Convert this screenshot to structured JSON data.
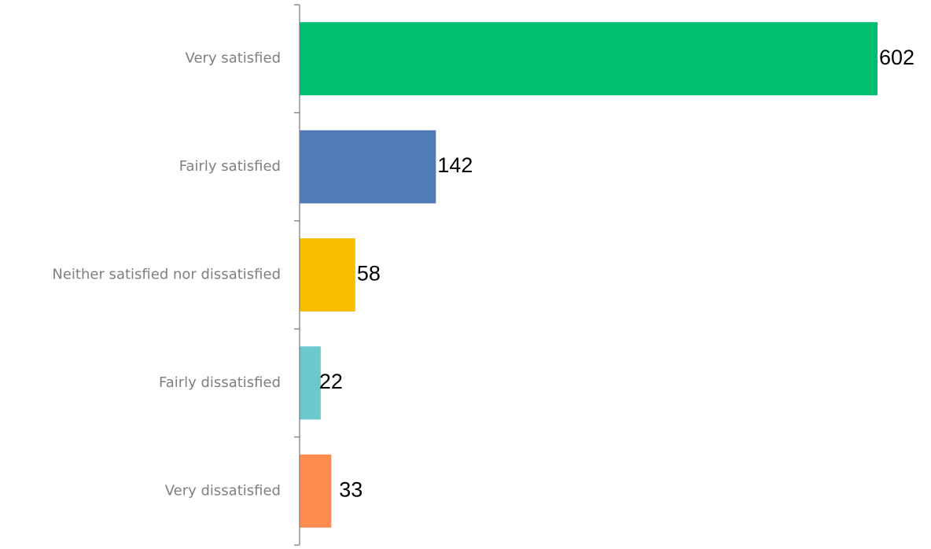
{
  "chart_data": {
    "type": "bar",
    "orientation": "horizontal",
    "categories": [
      "Very satisfied",
      "Fairly satisfied",
      "Neither satisfied nor dissatisfied",
      "Fairly dissatisfied",
      "Very dissatisfied"
    ],
    "values": [
      602,
      142,
      58,
      22,
      33
    ],
    "colors": [
      "#00bf6f",
      "#507cb6",
      "#f9be00",
      "#6bc8cd",
      "#ff8b4f"
    ],
    "data_labels": [
      "602",
      "142",
      "58",
      "22",
      "33"
    ],
    "xlim": [
      0,
      602
    ],
    "grid": false,
    "legend": "none"
  }
}
